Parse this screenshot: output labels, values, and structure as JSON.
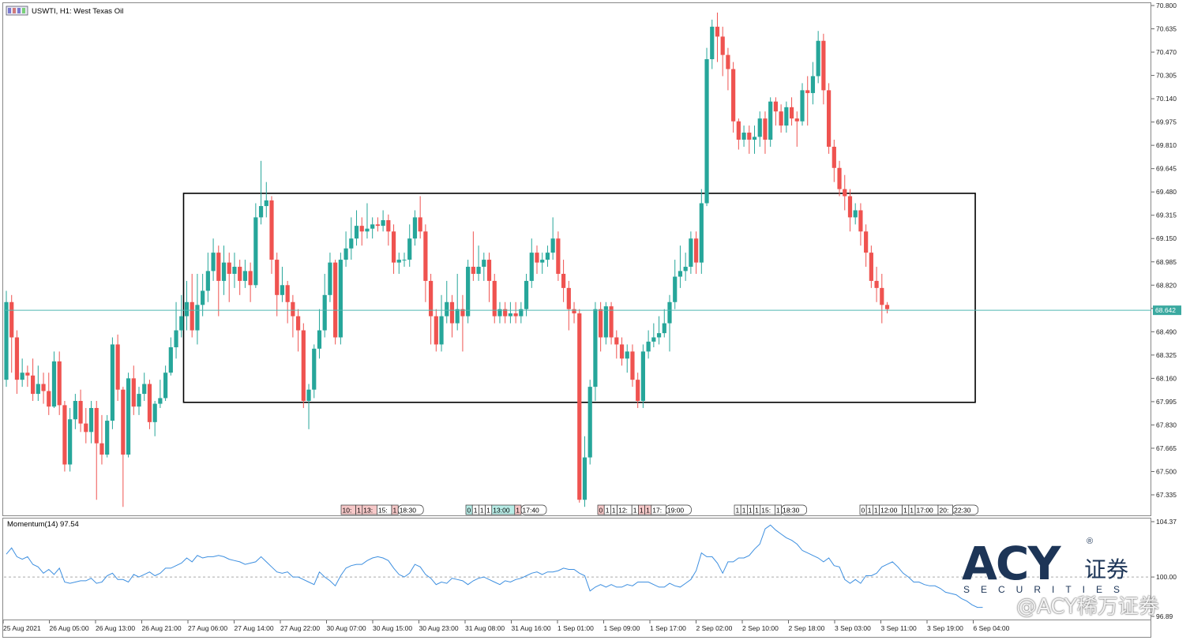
{
  "window": {
    "title": "USWTI, H1:  West Texas Oil",
    "icon": "chart-window-icon"
  },
  "chart_data": {
    "type": "candlestick",
    "symbol": "USWTI",
    "timeframe": "H1",
    "instrument": "West Texas Oil",
    "ylim": [
      67.26,
      70.8
    ],
    "y_ticks": [
      "70.800",
      "70.635",
      "70.470",
      "70.305",
      "70.140",
      "69.975",
      "69.810",
      "69.645",
      "69.480",
      "69.315",
      "69.150",
      "68.985",
      "68.820",
      "68.655",
      "68.490",
      "68.325",
      "68.160",
      "67.995",
      "67.830",
      "67.665",
      "67.500",
      "67.335"
    ],
    "x_ticks": [
      "25 Aug 2021",
      "26 Aug 05:00",
      "26 Aug 13:00",
      "26 Aug 21:00",
      "27 Aug 06:00",
      "27 Aug 14:00",
      "27 Aug 22:00",
      "30 Aug 07:00",
      "30 Aug 15:00",
      "30 Aug 23:00",
      "31 Aug 08:00",
      "31 Aug 16:00",
      "1 Sep 01:00",
      "1 Sep 09:00",
      "1 Sep 17:00",
      "2 Sep 02:00",
      "2 Sep 10:00",
      "2 Sep 18:00",
      "3 Sep 03:00",
      "3 Sep 11:00",
      "3 Sep 19:00",
      "6 Sep 04:00"
    ],
    "current_price": "68.642",
    "current_price_value": 68.642,
    "up_color": "#26a69a",
    "down_color": "#ef5350",
    "candles": [
      [
        68.15,
        68.7,
        68.78,
        68.1
      ],
      [
        68.7,
        68.45,
        68.75,
        68.2
      ],
      [
        68.45,
        68.15,
        68.5,
        68.05
      ],
      [
        68.15,
        68.2,
        68.3,
        68.1
      ],
      [
        68.2,
        68.18,
        68.25,
        68.1
      ],
      [
        68.18,
        68.05,
        68.3,
        68.0
      ],
      [
        68.05,
        68.12,
        68.25,
        68.0
      ],
      [
        68.12,
        68.07,
        68.2,
        67.98
      ],
      [
        68.07,
        67.96,
        68.2,
        67.9
      ],
      [
        67.96,
        68.28,
        68.35,
        67.95
      ],
      [
        68.28,
        67.97,
        68.35,
        67.9
      ],
      [
        67.97,
        67.55,
        68.0,
        67.5
      ],
      [
        67.55,
        67.87,
        67.95,
        67.5
      ],
      [
        67.87,
        68.0,
        68.05,
        67.8
      ],
      [
        68.0,
        67.84,
        68.08,
        67.78
      ],
      [
        67.84,
        67.78,
        67.95,
        67.7
      ],
      [
        67.78,
        67.95,
        68.0,
        67.7
      ],
      [
        67.95,
        67.7,
        68.0,
        67.3
      ],
      [
        67.7,
        67.62,
        67.9,
        67.55
      ],
      [
        67.62,
        67.86,
        67.9,
        67.6
      ],
      [
        67.86,
        68.4,
        68.45,
        67.8
      ],
      [
        68.4,
        68.08,
        68.47,
        68.0
      ],
      [
        68.08,
        67.62,
        68.1,
        67.25
      ],
      [
        67.62,
        68.16,
        68.2,
        67.6
      ],
      [
        68.16,
        67.96,
        68.25,
        67.9
      ],
      [
        67.96,
        68.05,
        68.1,
        67.9
      ],
      [
        68.05,
        68.12,
        68.2,
        68.0
      ],
      [
        68.12,
        67.85,
        68.15,
        67.8
      ],
      [
        67.85,
        67.98,
        68.0,
        67.75
      ],
      [
        67.98,
        68.02,
        68.15,
        67.95
      ],
      [
        68.02,
        68.2,
        68.25,
        68.0
      ],
      [
        68.2,
        68.38,
        68.45,
        68.18
      ],
      [
        68.38,
        68.5,
        68.7,
        68.3
      ],
      [
        68.5,
        68.6,
        68.75,
        68.45
      ],
      [
        68.6,
        68.7,
        68.85,
        68.5
      ],
      [
        68.7,
        68.5,
        68.9,
        68.45
      ],
      [
        68.5,
        68.68,
        68.9,
        68.4
      ],
      [
        68.68,
        68.78,
        68.9,
        68.6
      ],
      [
        68.78,
        68.92,
        69.05,
        68.7
      ],
      [
        68.92,
        69.05,
        69.15,
        68.85
      ],
      [
        69.05,
        68.85,
        69.1,
        68.6
      ],
      [
        68.85,
        68.98,
        69.1,
        68.75
      ],
      [
        68.98,
        68.9,
        69.05,
        68.7
      ],
      [
        68.9,
        68.95,
        69.05,
        68.8
      ],
      [
        68.95,
        68.85,
        69.0,
        68.75
      ],
      [
        68.85,
        68.92,
        69.0,
        68.8
      ],
      [
        68.92,
        68.82,
        68.98,
        68.7
      ],
      [
        68.82,
        69.3,
        69.4,
        68.8
      ],
      [
        69.3,
        69.38,
        69.7,
        69.25
      ],
      [
        69.38,
        69.42,
        69.55,
        69.3
      ],
      [
        69.42,
        69.0,
        69.45,
        68.9
      ],
      [
        69.0,
        68.75,
        69.05,
        68.6
      ],
      [
        68.75,
        68.82,
        68.95,
        68.7
      ],
      [
        68.82,
        68.7,
        68.85,
        68.55
      ],
      [
        68.7,
        68.6,
        68.75,
        68.45
      ],
      [
        68.6,
        68.5,
        68.65,
        68.35
      ],
      [
        68.5,
        68.0,
        68.55,
        67.95
      ],
      [
        68.0,
        68.08,
        68.12,
        67.8
      ],
      [
        68.08,
        68.37,
        68.4,
        68.02
      ],
      [
        68.37,
        68.5,
        68.65,
        68.3
      ],
      [
        68.5,
        68.75,
        68.9,
        68.45
      ],
      [
        68.75,
        68.98,
        69.05,
        68.7
      ],
      [
        68.98,
        68.45,
        69.0,
        68.4
      ],
      [
        68.45,
        69.0,
        69.05,
        68.4
      ],
      [
        69.0,
        69.08,
        69.2,
        68.95
      ],
      [
        69.08,
        69.15,
        69.3,
        69.0
      ],
      [
        69.15,
        69.24,
        69.35,
        69.1
      ],
      [
        69.24,
        69.2,
        69.3,
        69.1
      ],
      [
        69.2,
        69.22,
        69.4,
        69.15
      ],
      [
        69.22,
        69.25,
        69.3,
        69.15
      ],
      [
        69.25,
        69.24,
        69.3,
        69.2
      ],
      [
        69.24,
        69.28,
        69.35,
        69.2
      ],
      [
        69.28,
        69.2,
        69.32,
        69.1
      ],
      [
        69.2,
        68.98,
        69.25,
        68.9
      ],
      [
        68.98,
        69.0,
        69.05,
        68.9
      ],
      [
        69.0,
        69.0,
        69.05,
        68.95
      ],
      [
        69.0,
        69.15,
        69.25,
        68.95
      ],
      [
        69.15,
        69.3,
        69.35,
        69.1
      ],
      [
        69.3,
        69.2,
        69.45,
        69.15
      ],
      [
        69.2,
        68.85,
        69.25,
        68.7
      ],
      [
        68.85,
        68.6,
        68.9,
        68.4
      ],
      [
        68.6,
        68.4,
        68.65,
        68.35
      ],
      [
        68.4,
        68.6,
        68.75,
        68.35
      ],
      [
        68.6,
        68.7,
        68.85,
        68.55
      ],
      [
        68.7,
        68.55,
        68.75,
        68.45
      ],
      [
        68.55,
        68.65,
        68.9,
        68.5
      ],
      [
        68.65,
        68.6,
        68.75,
        68.35
      ],
      [
        68.6,
        68.95,
        69.0,
        68.55
      ],
      [
        68.95,
        68.9,
        69.2,
        68.85
      ],
      [
        68.9,
        68.95,
        69.1,
        68.85
      ],
      [
        68.95,
        69.0,
        69.05,
        68.85
      ],
      [
        69.0,
        68.85,
        69.05,
        68.7
      ],
      [
        68.85,
        68.6,
        68.9,
        68.55
      ],
      [
        68.6,
        68.65,
        68.7,
        68.55
      ],
      [
        68.65,
        68.6,
        68.7,
        68.55
      ],
      [
        68.6,
        68.62,
        68.7,
        68.55
      ],
      [
        68.62,
        68.6,
        68.7,
        68.55
      ],
      [
        68.6,
        68.65,
        68.7,
        68.55
      ],
      [
        68.65,
        68.85,
        68.9,
        68.6
      ],
      [
        68.85,
        69.05,
        69.15,
        68.8
      ],
      [
        69.05,
        68.98,
        69.1,
        68.9
      ],
      [
        68.98,
        69.0,
        69.05,
        68.9
      ],
      [
        69.0,
        69.05,
        69.1,
        68.95
      ],
      [
        69.05,
        69.15,
        69.3,
        69.0
      ],
      [
        69.15,
        68.9,
        69.2,
        68.85
      ],
      [
        68.9,
        68.8,
        69.0,
        68.7
      ],
      [
        68.8,
        68.65,
        68.85,
        68.5
      ],
      [
        68.65,
        68.62,
        68.7,
        68.55
      ],
      [
        68.62,
        67.3,
        68.65,
        67.28
      ],
      [
        67.3,
        67.6,
        67.75,
        67.25
      ],
      [
        67.6,
        68.1,
        68.15,
        67.55
      ],
      [
        68.1,
        68.65,
        68.7,
        68.0
      ],
      [
        68.65,
        68.45,
        68.7,
        68.35
      ],
      [
        68.45,
        68.67,
        68.7,
        68.4
      ],
      [
        68.67,
        68.45,
        68.7,
        68.4
      ],
      [
        68.45,
        68.4,
        68.5,
        68.3
      ],
      [
        68.4,
        68.3,
        68.45,
        68.25
      ],
      [
        68.3,
        68.35,
        68.4,
        68.2
      ],
      [
        68.35,
        68.15,
        68.4,
        68.1
      ],
      [
        68.15,
        68.0,
        68.2,
        67.95
      ],
      [
        68.0,
        68.35,
        68.4,
        67.95
      ],
      [
        68.35,
        68.42,
        68.5,
        68.3
      ],
      [
        68.42,
        68.45,
        68.55,
        68.38
      ],
      [
        68.45,
        68.48,
        68.6,
        68.4
      ],
      [
        68.48,
        68.55,
        68.65,
        68.45
      ],
      [
        68.55,
        68.7,
        68.75,
        68.35
      ],
      [
        68.7,
        68.88,
        69.0,
        68.65
      ],
      [
        68.88,
        68.92,
        69.1,
        68.8
      ],
      [
        68.92,
        68.95,
        69.05,
        68.85
      ],
      [
        68.95,
        69.15,
        69.2,
        68.9
      ],
      [
        69.15,
        68.98,
        69.2,
        68.9
      ],
      [
        68.98,
        69.4,
        69.5,
        68.9
      ],
      [
        69.4,
        70.42,
        70.5,
        69.38
      ],
      [
        70.42,
        70.65,
        70.7,
        70.35
      ],
      [
        70.65,
        70.58,
        70.75,
        70.4
      ],
      [
        70.58,
        70.45,
        70.65,
        70.3
      ],
      [
        70.45,
        70.35,
        70.5,
        70.2
      ],
      [
        70.35,
        69.98,
        70.4,
        69.9
      ],
      [
        69.98,
        69.85,
        70.0,
        69.78
      ],
      [
        69.85,
        69.9,
        69.95,
        69.8
      ],
      [
        69.9,
        69.85,
        69.95,
        69.75
      ],
      [
        69.85,
        69.87,
        69.95,
        69.75
      ],
      [
        69.87,
        70.0,
        70.05,
        69.8
      ],
      [
        70.0,
        69.85,
        70.05,
        69.75
      ],
      [
        69.85,
        70.12,
        70.15,
        69.8
      ],
      [
        70.12,
        70.05,
        70.15,
        69.95
      ],
      [
        70.05,
        69.95,
        70.1,
        69.9
      ],
      [
        69.95,
        70.08,
        70.12,
        69.9
      ],
      [
        70.08,
        70.0,
        70.15,
        69.95
      ],
      [
        70.0,
        69.98,
        70.05,
        69.8
      ],
      [
        69.98,
        70.2,
        70.25,
        69.95
      ],
      [
        70.2,
        70.18,
        70.3,
        69.95
      ],
      [
        70.18,
        70.3,
        70.4,
        70.1
      ],
      [
        70.3,
        70.55,
        70.62,
        70.25
      ],
      [
        70.55,
        70.2,
        70.6,
        70.1
      ],
      [
        70.2,
        69.8,
        70.25,
        69.75
      ],
      [
        69.8,
        69.65,
        69.85,
        69.55
      ],
      [
        69.65,
        69.5,
        69.7,
        69.45
      ],
      [
        69.5,
        69.45,
        69.6,
        69.35
      ],
      [
        69.45,
        69.3,
        69.5,
        69.2
      ],
      [
        69.3,
        69.35,
        69.4,
        69.25
      ],
      [
        69.35,
        69.2,
        69.4,
        69.1
      ],
      [
        69.2,
        69.05,
        69.25,
        68.95
      ],
      [
        69.05,
        68.85,
        69.1,
        68.8
      ],
      [
        68.85,
        68.8,
        68.95,
        68.7
      ],
      [
        68.8,
        68.68,
        68.9,
        68.55
      ],
      [
        68.68,
        68.65,
        68.7,
        68.62
      ]
    ],
    "sub_window": {
      "label": "Momentum(14) 97.54",
      "indicator": "Momentum",
      "period": 14,
      "value": "97.54",
      "color": "#3d8fe0",
      "y_ticks": [
        "104.37",
        "100.00",
        "96.89"
      ],
      "ylim": [
        96.89,
        104.37
      ],
      "reference_level": 100.0,
      "values": [
        101.8,
        102.3,
        101.6,
        101.4,
        101.6,
        101.0,
        100.8,
        100.3,
        100.6,
        100.2,
        100.7,
        99.6,
        99.5,
        99.6,
        99.7,
        99.7,
        99.9,
        99.5,
        99.6,
        100.1,
        100.3,
        99.8,
        99.8,
        99.6,
        100.2,
        100.0,
        100.2,
        100.4,
        100.1,
        100.3,
        100.7,
        100.7,
        100.9,
        101.1,
        101.5,
        101.2,
        101.7,
        101.5,
        101.6,
        101.6,
        101.7,
        101.6,
        101.4,
        101.3,
        101.2,
        101.0,
        101.1,
        101.2,
        101.6,
        101.2,
        100.8,
        100.4,
        100.3,
        100.4,
        100.0,
        100.0,
        99.8,
        99.6,
        99.4,
        100.4,
        100.0,
        99.7,
        99.3,
        100.1,
        100.7,
        100.9,
        101.0,
        101.0,
        101.3,
        101.5,
        101.6,
        101.5,
        101.3,
        100.7,
        100.2,
        100.0,
        100.3,
        101.0,
        100.8,
        100.2,
        99.9,
        99.4,
        99.6,
        99.5,
        99.9,
        99.8,
        99.7,
        99.4,
        99.7,
        99.9,
        100.0,
        99.8,
        99.6,
        99.4,
        99.7,
        99.6,
        99.8,
        99.9,
        100.1,
        100.3,
        100.4,
        100.2,
        100.4,
        100.4,
        100.5,
        100.7,
        100.6,
        100.6,
        100.3,
        100.1,
        98.9,
        99.2,
        99.4,
        99.2,
        99.4,
        99.2,
        99.2,
        99.4,
        99.3,
        99.6,
        99.6,
        99.6,
        99.4,
        99.2,
        99.2,
        99.5,
        99.3,
        99.2,
        99.5,
        99.8,
        100.5,
        101.9,
        101.6,
        101.6,
        101.1,
        100.3,
        101.2,
        101.2,
        101.5,
        101.5,
        101.7,
        102.2,
        102.6,
        103.8,
        104.1,
        103.7,
        103.4,
        103.1,
        102.9,
        102.6,
        102.1,
        101.9,
        101.7,
        101.5,
        101.2,
        101.5,
        100.9,
        100.8,
        99.8,
        99.5,
        99.8,
        99.5,
        100.1,
        100.1,
        100.3,
        100.8,
        101.0,
        101.2,
        100.8,
        100.3,
        100.0,
        99.6,
        99.6,
        99.4,
        99.3,
        99.3,
        99.1,
        98.8,
        98.7,
        98.6,
        98.3,
        98.1,
        97.8,
        97.6,
        97.6
      ]
    },
    "rectangle": {
      "price_top": 69.47,
      "price_bottom": 67.99,
      "from_candle": 34,
      "to_candle": 182
    },
    "event_markers": [
      {
        "labels": [
          "10:",
          "1",
          "13:",
          "15:",
          "1",
          "18:30"
        ],
        "colors": [
          "red",
          "red",
          "red",
          "white",
          "red",
          "white"
        ]
      },
      {
        "labels": [
          "0",
          "1",
          "1",
          "1",
          "13:00",
          "1",
          "17:40"
        ],
        "colors": [
          "teal",
          "white",
          "white",
          "white",
          "teal",
          "red",
          "white"
        ]
      },
      {
        "labels": [
          "0",
          "1",
          "1",
          "12:",
          "1",
          "1",
          "1",
          "17:",
          "19:00"
        ],
        "colors": [
          "red",
          "white",
          "white",
          "white",
          "white",
          "red",
          "red",
          "white",
          "white"
        ]
      },
      {
        "labels": [
          "1",
          "1",
          "1",
          "1",
          "15:",
          "1",
          "18:30"
        ],
        "colors": [
          "white",
          "white",
          "white",
          "white",
          "white",
          "white",
          "white"
        ]
      },
      {
        "labels": [
          "0",
          "1",
          "1",
          "12:00",
          "1",
          "1",
          "17:00",
          "20:",
          "22:30"
        ],
        "colors": [
          "white",
          "white",
          "white",
          "white",
          "white",
          "white",
          "white",
          "white",
          "white"
        ]
      }
    ]
  },
  "branding": {
    "logo_text": "ACY",
    "logo_registered": "®",
    "logo_cn": "证券",
    "logo_sub": "SECURITIES",
    "watermark": "@ACY稀万证券"
  }
}
